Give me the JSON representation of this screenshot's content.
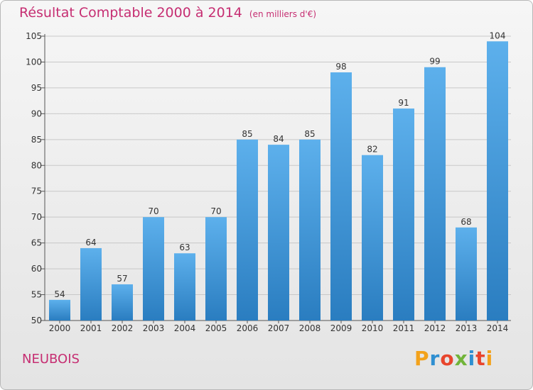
{
  "header": {
    "title": "Résultat Comptable 2000 à 2014",
    "unit": "(en milliers d'€)"
  },
  "footer": {
    "commune": "NEUBOIS",
    "logo_text": "Proxiti",
    "logo_colors": [
      "#f3a21b",
      "#2f8fd1",
      "#e8452c",
      "#71b43a",
      "#2f8fd1",
      "#e8452c",
      "#f3a21b"
    ]
  },
  "colors": {
    "title": "#c62e72",
    "bar_light": "#5db0ec",
    "bar_dark": "#2a7dc0",
    "grid": "#c8c8c8"
  },
  "chart_data": {
    "type": "bar",
    "categories": [
      "2000",
      "2001",
      "2002",
      "2003",
      "2004",
      "2005",
      "2006",
      "2007",
      "2008",
      "2009",
      "2010",
      "2011",
      "2012",
      "2013",
      "2014"
    ],
    "values": [
      54,
      64,
      57,
      70,
      63,
      70,
      85,
      84,
      85,
      98,
      82,
      91,
      99,
      68,
      104
    ],
    "value_labels": [
      "54",
      "64",
      "57",
      "70",
      "63",
      "70",
      "85",
      "84",
      "85",
      "98",
      "82",
      "91",
      "99",
      "68",
      "104"
    ],
    "y_ticks": [
      50,
      55,
      60,
      65,
      70,
      75,
      80,
      85,
      90,
      95,
      100,
      105
    ],
    "ylim": [
      50,
      105
    ],
    "grid": true,
    "xlabel": "",
    "ylabel": ""
  }
}
